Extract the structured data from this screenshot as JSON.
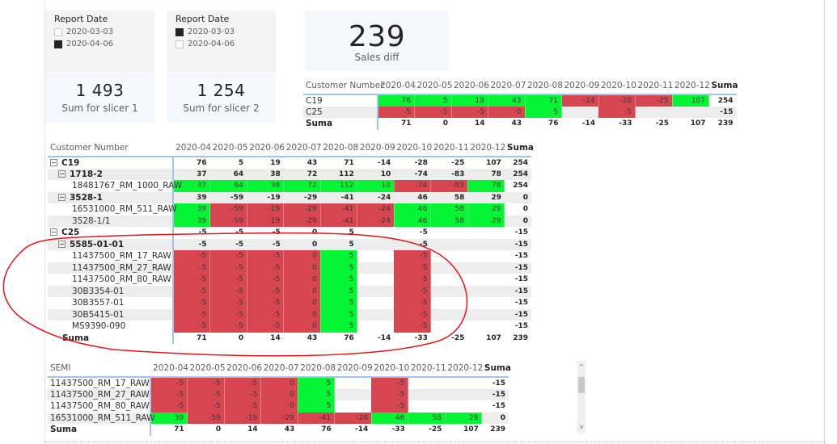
{
  "slicer1": {
    "title": "Report Date",
    "items": [
      {
        "label": "2020-03-03",
        "checked": false
      },
      {
        "label": "2020-04-06",
        "checked": true
      }
    ]
  },
  "slicer2": {
    "title": "Report Date",
    "items": [
      {
        "label": "2020-03-03",
        "checked": true
      },
      {
        "label": "2020-04-06",
        "checked": false
      }
    ]
  },
  "card1": {
    "value": "1 493",
    "label": "Sum for slicer 1"
  },
  "card2": {
    "value": "1 254",
    "label": "Sum for slicer 2"
  },
  "card3": {
    "value": "239",
    "label": "Sales diff"
  },
  "colors": {
    "positive": "#05f535",
    "negative": "#d64550",
    "header_rule": "#9fc7ee",
    "alt_row": "#ededed"
  },
  "months": [
    "2020-04",
    "2020-05",
    "2020-06",
    "2020-07",
    "2020-08",
    "2020-09",
    "2020-10",
    "2020-11",
    "2020-12"
  ],
  "total_label": "Suma",
  "top_matrix": {
    "row_header": "Customer Number",
    "rows": [
      {
        "label": "C19",
        "values": [
          "76",
          "5",
          "19",
          "43",
          "71",
          "-14",
          "-28",
          "-25",
          "107"
        ],
        "total": "254"
      },
      {
        "label": "C25",
        "values": [
          "-5",
          "-5",
          "-5",
          "0",
          "5",
          "",
          "-5",
          "",
          ""
        ],
        "total": "-15"
      }
    ],
    "totals": {
      "label": "Suma",
      "values": [
        "71",
        "0",
        "14",
        "43",
        "76",
        "-14",
        "-33",
        "-25",
        "107"
      ],
      "total": "239"
    }
  },
  "main_matrix": {
    "row_header": "Customer Number",
    "rows": [
      {
        "label": "C19",
        "level": 0,
        "values": [
          "76",
          "5",
          "19",
          "43",
          "71",
          "-14",
          "-28",
          "-25",
          "107"
        ],
        "total": "254"
      },
      {
        "label": "1718-2",
        "level": 1,
        "values": [
          "37",
          "64",
          "38",
          "72",
          "112",
          "10",
          "-74",
          "-83",
          "78"
        ],
        "total": "254"
      },
      {
        "label": "18481767_RM_1000_RAW",
        "level": 2,
        "values": [
          "37",
          "64",
          "38",
          "72",
          "112",
          "10",
          "-74",
          "-83",
          "78"
        ],
        "total": "254"
      },
      {
        "label": "3528-1",
        "level": 1,
        "values": [
          "39",
          "-59",
          "-19",
          "-29",
          "-41",
          "-24",
          "46",
          "58",
          "29"
        ],
        "total": "0"
      },
      {
        "label": "16531000_RM_511_RAW",
        "level": 2,
        "values": [
          "39",
          "-59",
          "-19",
          "-29",
          "-41",
          "-24",
          "46",
          "58",
          "29"
        ],
        "total": "0"
      },
      {
        "label": "3528-1/1",
        "level": 2,
        "values": [
          "39",
          "-59",
          "-19",
          "-29",
          "-41",
          "-24",
          "46",
          "58",
          "29"
        ],
        "total": "0"
      },
      {
        "label": "C25",
        "level": 0,
        "values": [
          "-5",
          "-5",
          "-5",
          "0",
          "5",
          "",
          "-5",
          "",
          ""
        ],
        "total": "-15"
      },
      {
        "label": "5585-01-01",
        "level": 1,
        "values": [
          "-5",
          "-5",
          "-5",
          "0",
          "5",
          "",
          "-5",
          "",
          ""
        ],
        "total": "-15"
      },
      {
        "label": "11437500_RM_17_RAW",
        "level": 2,
        "values": [
          "-5",
          "-5",
          "-5",
          "0",
          "5",
          "",
          "-5",
          "",
          ""
        ],
        "total": "-15"
      },
      {
        "label": "11437500_RM_27_RAW",
        "level": 2,
        "values": [
          "-5",
          "-5",
          "-5",
          "0",
          "5",
          "",
          "-5",
          "",
          ""
        ],
        "total": "-15"
      },
      {
        "label": "11437500_RM_80_RAW",
        "level": 2,
        "values": [
          "-5",
          "-5",
          "-5",
          "0",
          "5",
          "",
          "-5",
          "",
          ""
        ],
        "total": "-15"
      },
      {
        "label": "30B3354-01",
        "level": 2,
        "values": [
          "-5",
          "-5",
          "-5",
          "0",
          "5",
          "",
          "-5",
          "",
          ""
        ],
        "total": "-15"
      },
      {
        "label": "30B3557-01",
        "level": 2,
        "values": [
          "-5",
          "-5",
          "-5",
          "0",
          "5",
          "",
          "-5",
          "",
          ""
        ],
        "total": "-15"
      },
      {
        "label": "30B5415-01",
        "level": 2,
        "values": [
          "-5",
          "-5",
          "-5",
          "0",
          "5",
          "",
          "-5",
          "",
          ""
        ],
        "total": "-15"
      },
      {
        "label": "MS9390-090",
        "level": 2,
        "values": [
          "-5",
          "-5",
          "-5",
          "0",
          "5",
          "",
          "-5",
          "",
          ""
        ],
        "total": "-15"
      }
    ],
    "totals": {
      "label": "Suma",
      "values": [
        "71",
        "0",
        "14",
        "43",
        "76",
        "-14",
        "-33",
        "-25",
        "107"
      ],
      "total": "239"
    }
  },
  "semi_matrix": {
    "row_header": "SEMI",
    "rows": [
      {
        "label": "11437500_RM_17_RAW",
        "values": [
          "-5",
          "-5",
          "-5",
          "0",
          "5",
          "",
          "-5",
          "",
          ""
        ],
        "total": "-15"
      },
      {
        "label": "11437500_RM_27_RAW",
        "values": [
          "-5",
          "-5",
          "-5",
          "0",
          "5",
          "",
          "-5",
          "",
          ""
        ],
        "total": "-15"
      },
      {
        "label": "11437500_RM_80_RAW",
        "values": [
          "-5",
          "-5",
          "-5",
          "0",
          "5",
          "",
          "-5",
          "",
          ""
        ],
        "total": "-15"
      },
      {
        "label": "16531000_RM_511_RAW",
        "values": [
          "39",
          "-59",
          "-19",
          "-29",
          "-41",
          "-24",
          "46",
          "58",
          "29"
        ],
        "total": "0"
      }
    ],
    "totals": {
      "label": "Suma",
      "values": [
        "71",
        "0",
        "14",
        "43",
        "76",
        "-14",
        "-33",
        "-25",
        "107"
      ],
      "total": "239"
    },
    "scrollbar": {
      "up": "^",
      "down": "v"
    }
  }
}
